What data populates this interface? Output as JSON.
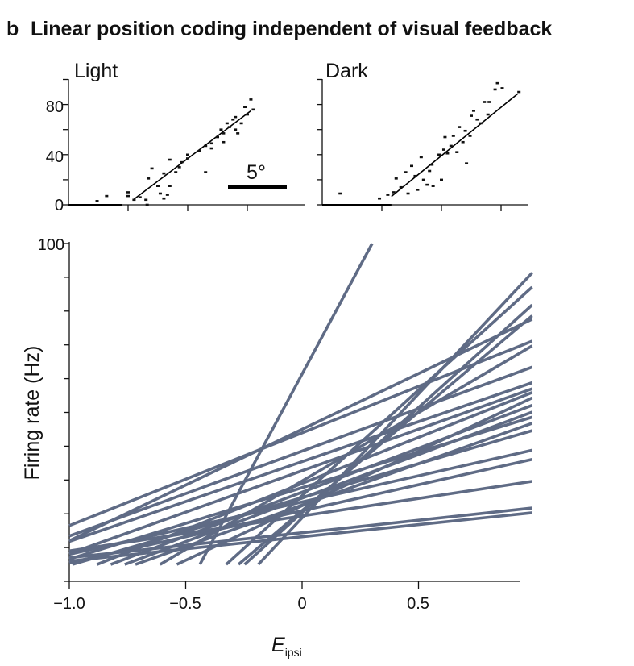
{
  "chart_data": [
    {
      "type": "scatter",
      "panel_label": "b",
      "title": "Linear position coding independent of visual feedback",
      "name": "Light",
      "xlabel": "",
      "ylabel": "",
      "xlim": [
        0,
        20
      ],
      "ylim": [
        0,
        90
      ],
      "yticks": [
        "0",
        "40",
        "80"
      ],
      "scalebar_label": "5°",
      "fit": [
        [
          5.5,
          4.5
        ],
        [
          15.3,
          75
        ]
      ],
      "flat": [
        [
          0,
          0
        ],
        [
          4.5,
          0
        ]
      ],
      "points": [
        [
          2.4,
          3
        ],
        [
          3.2,
          7
        ],
        [
          5,
          10
        ],
        [
          5,
          7
        ],
        [
          5.5,
          4
        ],
        [
          6.5,
          4
        ],
        [
          6,
          6
        ],
        [
          6.7,
          21
        ],
        [
          7,
          29
        ],
        [
          7.5,
          15
        ],
        [
          7.7,
          9
        ],
        [
          8,
          25
        ],
        [
          8,
          5
        ],
        [
          8.3,
          8
        ],
        [
          8.5,
          15
        ],
        [
          9,
          26
        ],
        [
          8.5,
          36
        ],
        [
          9.3,
          30
        ],
        [
          9.5,
          34
        ],
        [
          10,
          40
        ],
        [
          10,
          37
        ],
        [
          11,
          43
        ],
        [
          11.5,
          47
        ],
        [
          11.5,
          26
        ],
        [
          12,
          49
        ],
        [
          12,
          45
        ],
        [
          12.5,
          54
        ],
        [
          12.8,
          60
        ],
        [
          13,
          50
        ],
        [
          13,
          57
        ],
        [
          13.3,
          65
        ],
        [
          13.5,
          62
        ],
        [
          13.8,
          68
        ],
        [
          14,
          60
        ],
        [
          14,
          70
        ],
        [
          14.2,
          57
        ],
        [
          14.5,
          65
        ],
        [
          14.8,
          78
        ],
        [
          15,
          72
        ],
        [
          15.3,
          84
        ],
        [
          15.5,
          76
        ],
        [
          6.6,
          0
        ]
      ]
    },
    {
      "type": "scatter",
      "name": "Dark",
      "xlim": [
        0,
        17.5
      ],
      "ylim": [
        0,
        100
      ],
      "fit": [
        [
          5.8,
          6.7
        ],
        [
          16.4,
          88.6
        ]
      ],
      "flat": [
        [
          0,
          0
        ],
        [
          5.8,
          0
        ]
      ],
      "points": [
        [
          1.5,
          9
        ],
        [
          4.8,
          5
        ],
        [
          5.5,
          8
        ],
        [
          6,
          10
        ],
        [
          6.2,
          21
        ],
        [
          6.6,
          14
        ],
        [
          7,
          26
        ],
        [
          7.2,
          9
        ],
        [
          7.5,
          31
        ],
        [
          7.8,
          23
        ],
        [
          8,
          12
        ],
        [
          8.3,
          38
        ],
        [
          8.5,
          20
        ],
        [
          8.8,
          16
        ],
        [
          9,
          27
        ],
        [
          9.2,
          32
        ],
        [
          9.3,
          15
        ],
        [
          9.8,
          40
        ],
        [
          10,
          20
        ],
        [
          10.2,
          44
        ],
        [
          10.5,
          41
        ],
        [
          10.3,
          54
        ],
        [
          10.8,
          47
        ],
        [
          11,
          55
        ],
        [
          11.3,
          42
        ],
        [
          11.5,
          62
        ],
        [
          11.8,
          50
        ],
        [
          12,
          59
        ],
        [
          12.1,
          33
        ],
        [
          12.4,
          55
        ],
        [
          12.5,
          71
        ],
        [
          12.7,
          75
        ],
        [
          13,
          68
        ],
        [
          13.3,
          65
        ],
        [
          13.6,
          82
        ],
        [
          13.9,
          72
        ],
        [
          14,
          82
        ],
        [
          14.5,
          92
        ],
        [
          14.7,
          97
        ],
        [
          15.1,
          93
        ],
        [
          16.5,
          90
        ]
      ]
    },
    {
      "type": "line",
      "title": "",
      "xlabel": "E",
      "xlabel_sub": "ipsi",
      "ylabel": "Firing rate (Hz)",
      "xlim": [
        -1.0,
        1.0
      ],
      "ylim": [
        0,
        100
      ],
      "xticks": [
        "−1.0",
        "−0.5",
        "0",
        "0.5"
      ],
      "xtick_values": [
        -1.0,
        -0.5,
        0,
        0.5
      ],
      "ytick_label": "100",
      "color": "#5f6b85",
      "lines": [
        [
          -1,
          16.5,
          0.988,
          71.1
        ],
        [
          -1,
          13.4,
          0.988,
          63.4
        ],
        [
          -1,
          11.8,
          0.988,
          58.8
        ],
        [
          -1,
          8.2,
          0.988,
          57
        ],
        [
          -1,
          6.6,
          0.988,
          48.6
        ],
        [
          -1,
          5.5,
          0.988,
          36.1
        ],
        [
          -0.987,
          5,
          0.988,
          44.6
        ],
        [
          -0.881,
          5,
          0.988,
          55.9
        ],
        [
          -0.822,
          5,
          0.988,
          52.1
        ],
        [
          -0.762,
          5,
          0.988,
          50.1
        ],
        [
          -0.716,
          5,
          0.988,
          46.8
        ],
        [
          -0.61,
          5,
          0.988,
          69.7
        ],
        [
          -0.538,
          5,
          0.988,
          54.3
        ],
        [
          -0.439,
          5,
          0.301,
          100
        ],
        [
          -0.326,
          5,
          0.988,
          87.1
        ],
        [
          -0.273,
          5,
          0.988,
          78.6
        ],
        [
          -0.247,
          5,
          0.988,
          81.8
        ],
        [
          -0.188,
          5,
          0.988,
          91.3
        ],
        [
          -1,
          7,
          0.988,
          21.7
        ],
        [
          -1,
          6,
          0.988,
          20.3
        ],
        [
          -1,
          8,
          0.988,
          38.8
        ],
        [
          -1,
          9,
          0.988,
          29.6
        ],
        [
          -1,
          12,
          0.988,
          77.6
        ]
      ]
    }
  ]
}
